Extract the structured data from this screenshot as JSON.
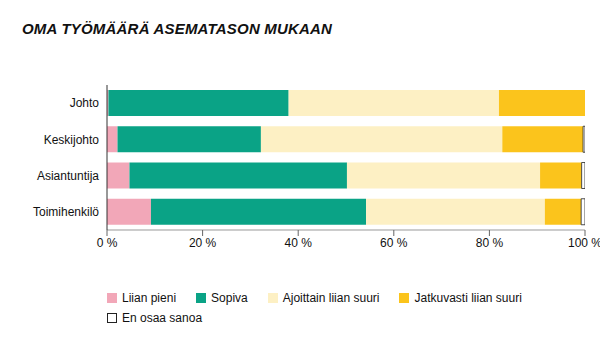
{
  "chart_data": {
    "type": "bar",
    "title": "OMA TYÖMÄÄRÄ ASEMATASON MUKAAN",
    "orientation": "horizontal",
    "stacked": true,
    "grid": false,
    "categories": [
      "Johto",
      "Keskijohto",
      "Asiantuntija",
      "Toimihenkilö"
    ],
    "series": [
      {
        "name": "Liian pieni",
        "color": "#f2a7b8",
        "values": [
          0.3,
          2.2,
          4.7,
          9.2
        ]
      },
      {
        "name": "Sopiva",
        "color": "#0aa386",
        "values": [
          37.7,
          30,
          45.5,
          45
        ]
      },
      {
        "name": "Ajoittain liian suuri",
        "color": "#fdf0c4",
        "values": [
          44,
          50.5,
          40.4,
          37.4
        ]
      },
      {
        "name": "Jatkuvasti liian suuri",
        "color": "#fbc41c",
        "values": [
          18,
          16.9,
          8.7,
          7.6
        ]
      },
      {
        "name": "En osaa sanoa",
        "color": "#ffffff",
        "values": [
          0,
          0.4,
          0.7,
          0.8
        ]
      }
    ],
    "xlim": [
      0,
      100
    ],
    "xticks": [
      {
        "value": 0,
        "label": "0 %"
      },
      {
        "value": 20,
        "label": "20 %"
      },
      {
        "value": 40,
        "label": "40 %"
      },
      {
        "value": 60,
        "label": "60 %"
      },
      {
        "value": 80,
        "label": "80 %"
      },
      {
        "value": 100,
        "label": "100 %"
      }
    ]
  }
}
